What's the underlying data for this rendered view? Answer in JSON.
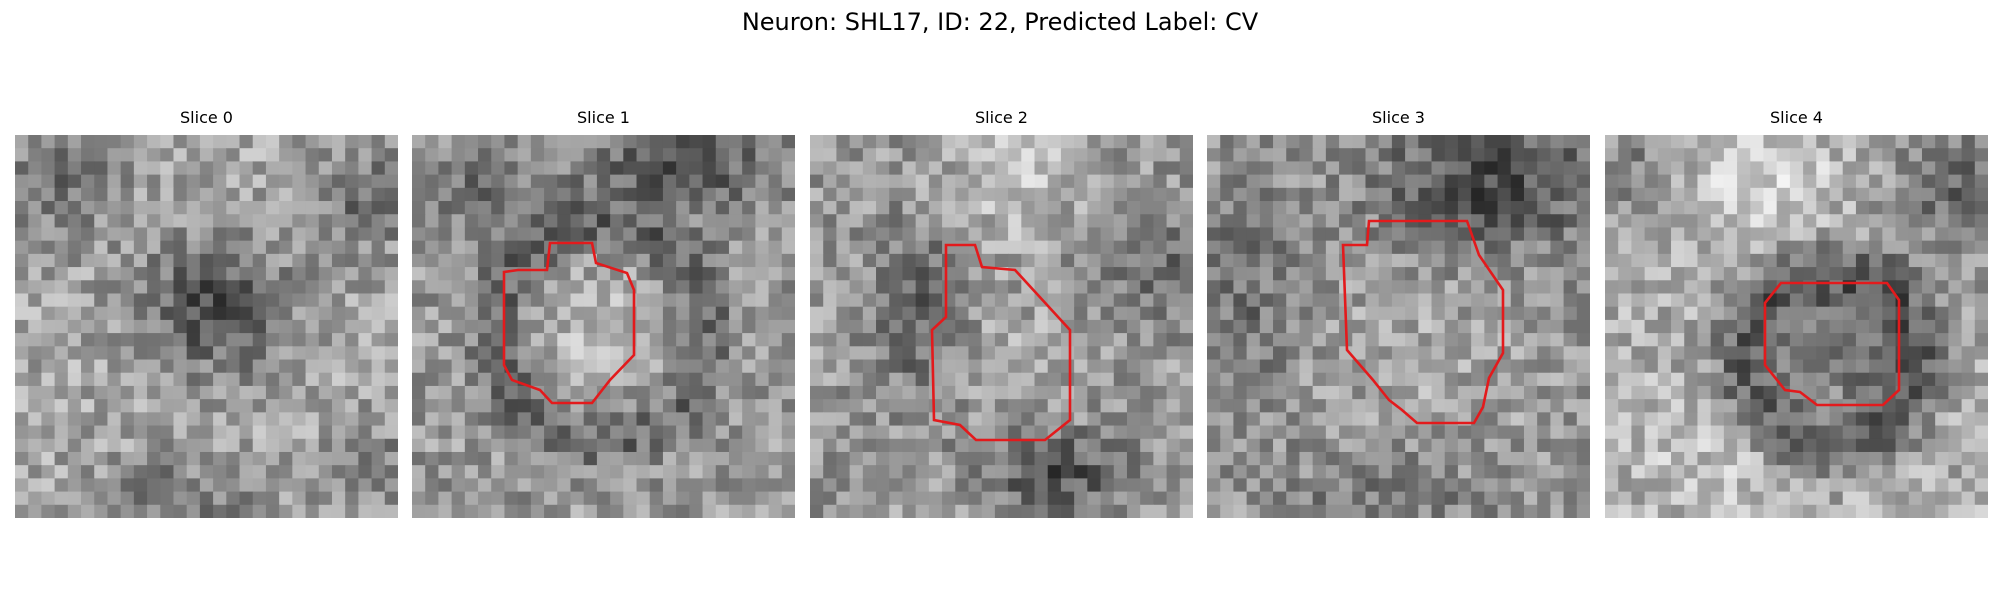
{
  "figure": {
    "title": "Neuron: SHL17, ID: 22, Predicted Label: CV",
    "panels": [
      {
        "title": "Slice 0",
        "has_contour": false,
        "contour_color": "#e31a1c"
      },
      {
        "title": "Slice 1",
        "has_contour": true,
        "contour_color": "#e31a1c"
      },
      {
        "title": "Slice 2",
        "has_contour": true,
        "contour_color": "#e31a1c"
      },
      {
        "title": "Slice 3",
        "has_contour": true,
        "contour_color": "#e31a1c"
      },
      {
        "title": "Slice 4",
        "has_contour": true,
        "contour_color": "#e31a1c"
      }
    ],
    "colormap": "grayscale"
  }
}
